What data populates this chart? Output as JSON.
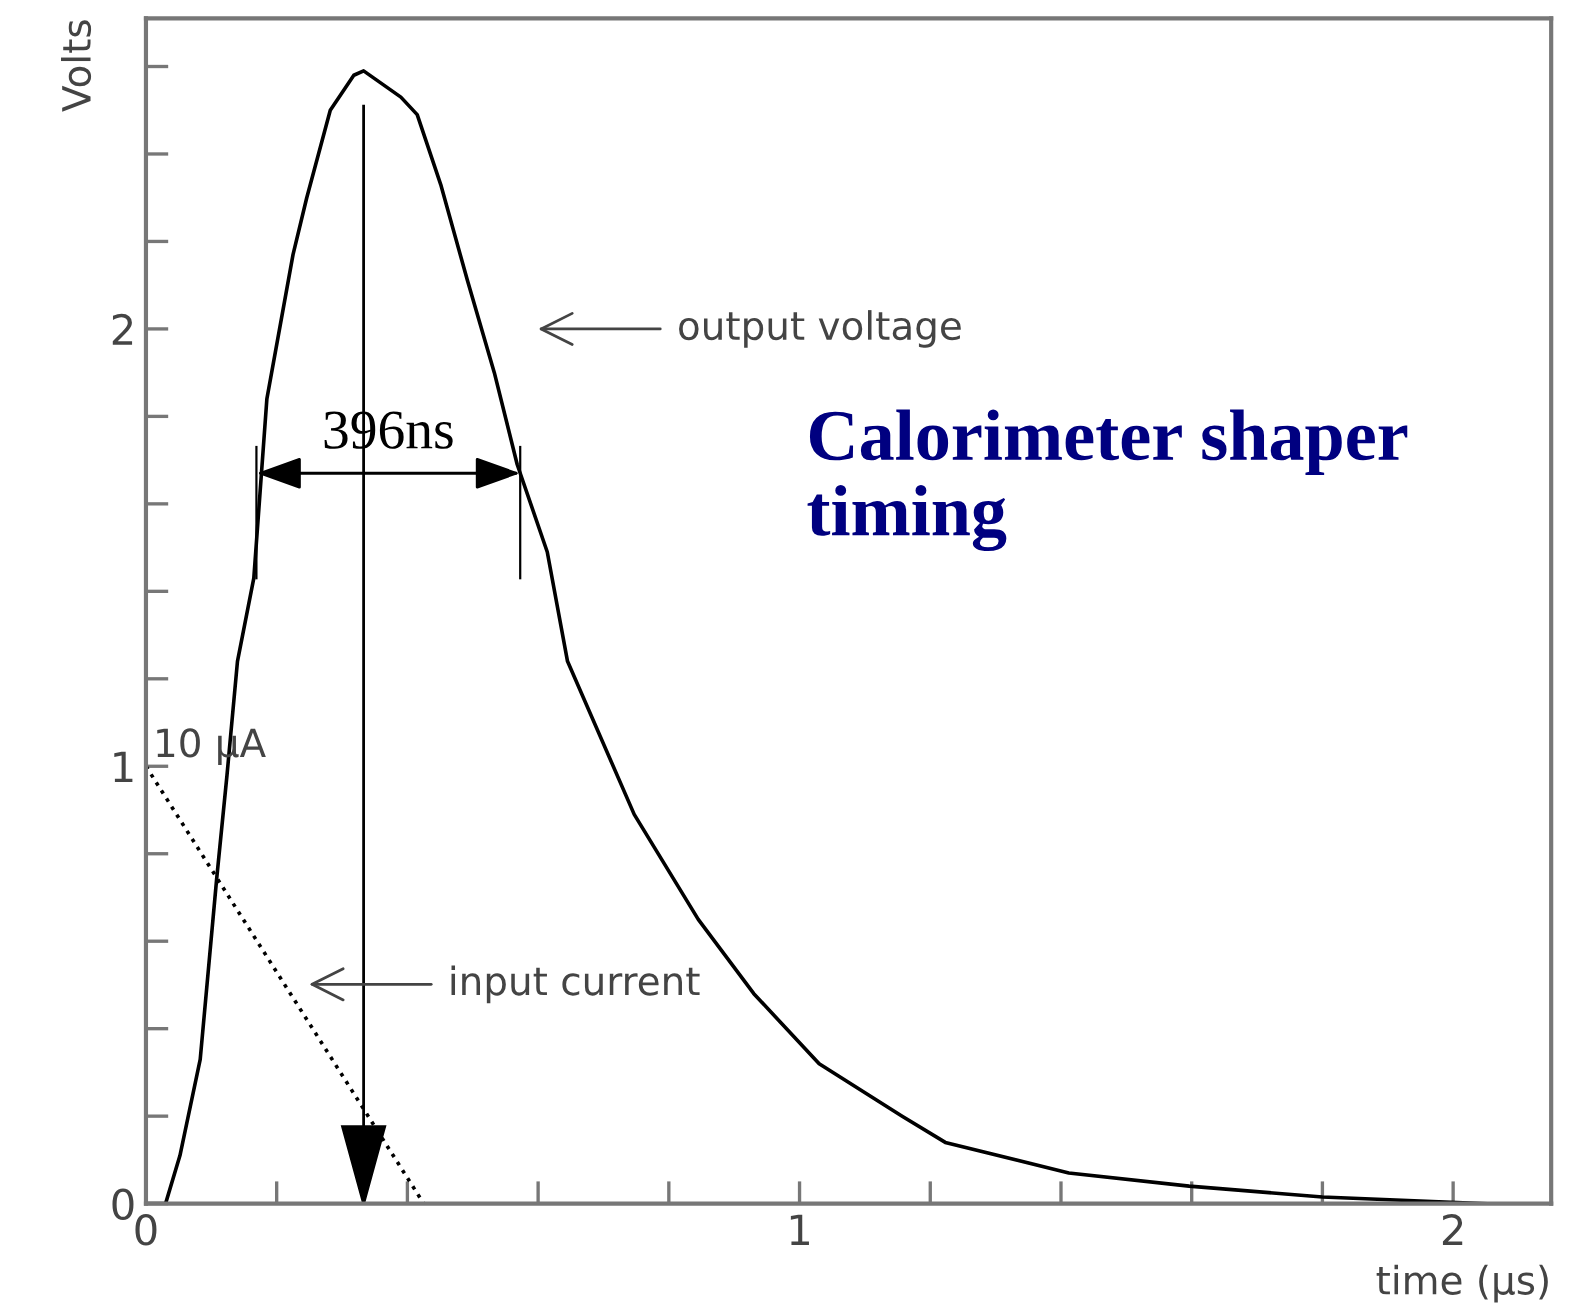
{
  "chart_data": {
    "type": "line",
    "title": "Calorimeter shaper timing",
    "xlabel": "time (µs)",
    "ylabel": "Volts",
    "series": [
      {
        "color": "#000000",
        "line_style": "solid",
        "x": [
          0,
          0.03,
          0.052,
          0.083,
          0.108,
          0.124,
          0.14,
          0.165,
          0.185,
          0.225,
          0.246,
          0.282,
          0.318,
          0.333,
          0.39,
          0.415,
          0.451,
          0.492,
          0.533,
          0.568,
          0.614,
          0.645,
          0.747,
          0.845,
          0.93,
          1.03,
          1.157,
          1.223,
          1.412,
          1.596,
          1.8,
          2.05
        ],
        "values": [
          0,
          0,
          0.11,
          0.33,
          0.74,
          0.98,
          1.24,
          1.43,
          1.84,
          2.17,
          2.3,
          2.5,
          2.58,
          2.59,
          2.53,
          2.49,
          2.33,
          2.11,
          1.9,
          1.69,
          1.49,
          1.24,
          0.89,
          0.65,
          0.48,
          0.32,
          0.2,
          0.14,
          0.07,
          0.04,
          0.015,
          0
        ]
      },
      {
        "color": "#000000",
        "line_style": "dotted",
        "x": [
          0,
          0.425
        ],
        "values": [
          1,
          0
        ]
      }
    ],
    "annotations": [
      "output voltage",
      "input current",
      "10 µA",
      {
        "text": "396ns",
        "x": 0.169,
        "y": 1.67
      }
    ],
    "ref_lines": [
      {
        "axis": "x",
        "value": 0.333,
        "color": "#000000"
      }
    ],
    "xlim": [
      0,
      2.15
    ],
    "ylim": [
      0,
      2.71
    ],
    "xticks": [
      0,
      {
        "value": 0.2,
        "label": null
      },
      {
        "value": 0.4,
        "label": null
      },
      {
        "value": 0.6,
        "label": null
      },
      {
        "value": 0.8,
        "label": null
      },
      1,
      {
        "value": 1.2,
        "label": null
      },
      {
        "value": 1.4,
        "label": null
      },
      {
        "value": 1.6,
        "label": null
      },
      {
        "value": 1.8,
        "label": null
      },
      2
    ],
    "yticks": [
      0,
      {
        "value": 0.2,
        "label": null
      },
      {
        "value": 0.4,
        "label": null
      },
      {
        "value": 0.6,
        "label": null
      },
      {
        "value": 0.8,
        "label": null
      },
      1,
      {
        "value": 1.2,
        "label": null
      },
      {
        "value": 1.4,
        "label": null
      },
      {
        "value": 1.6,
        "label": null
      },
      {
        "value": 1.8,
        "label": null
      },
      2,
      {
        "value": 2.2,
        "label": null
      },
      {
        "value": 2.4,
        "label": null
      },
      {
        "value": 2.6,
        "label": null
      }
    ],
    "grid": false,
    "legend": false
  }
}
